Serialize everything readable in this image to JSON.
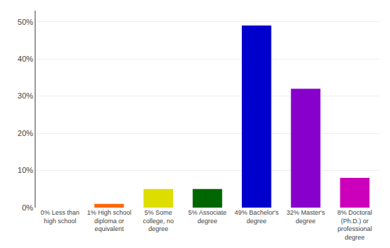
{
  "chart_data": {
    "type": "bar",
    "categories": [
      "0% Less than\nhigh school",
      "1% High school\ndiploma or\nequivalent",
      "5% Some\ncollege, no\ndegree",
      "5% Associate\ndegree",
      "49% Bachelor's\ndegree",
      "32% Master's\ndegree",
      "8% Doctoral\n(Ph.D.) or\nprofessional\ndegree"
    ],
    "values": [
      0,
      1,
      5,
      5,
      49,
      32,
      8
    ],
    "colors": [
      "#cc0000",
      "#ff6600",
      "#dddd00",
      "#006600",
      "#0000cc",
      "#8800cc",
      "#cc00bb"
    ],
    "ylim": [
      0,
      53
    ],
    "yticks": [
      {
        "value": 0,
        "label": "0%"
      },
      {
        "value": 10,
        "label": "10%"
      },
      {
        "value": 20,
        "label": "20%"
      },
      {
        "value": 30,
        "label": "30%"
      },
      {
        "value": 40,
        "label": "40%"
      },
      {
        "value": 50,
        "label": "50%"
      }
    ],
    "grid": true
  }
}
